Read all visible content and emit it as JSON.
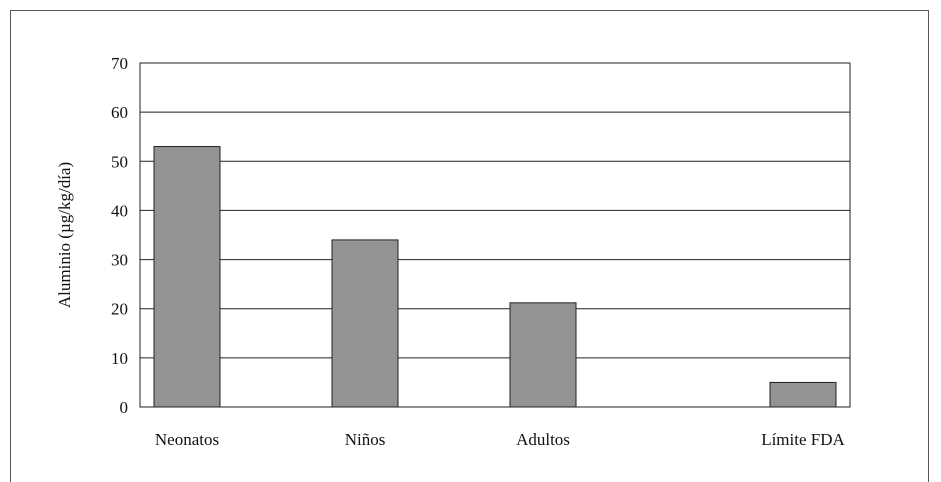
{
  "chart_data": {
    "type": "bar",
    "title": "",
    "xlabel": "",
    "ylabel": "Aluminio (µg/kg/día)",
    "categories": [
      "Neonatos",
      "Niños",
      "Adultos",
      "Límite FDA"
    ],
    "values": [
      53,
      34,
      21.2,
      5
    ],
    "ylim": [
      0,
      70
    ],
    "yticks": [
      "0",
      "10",
      "20",
      "30",
      "40",
      "50",
      "60",
      "70"
    ],
    "grid": true,
    "legend": "none",
    "bar_color": "#939393",
    "bar_edge_color": "#222222",
    "grid_color": "#222222"
  }
}
